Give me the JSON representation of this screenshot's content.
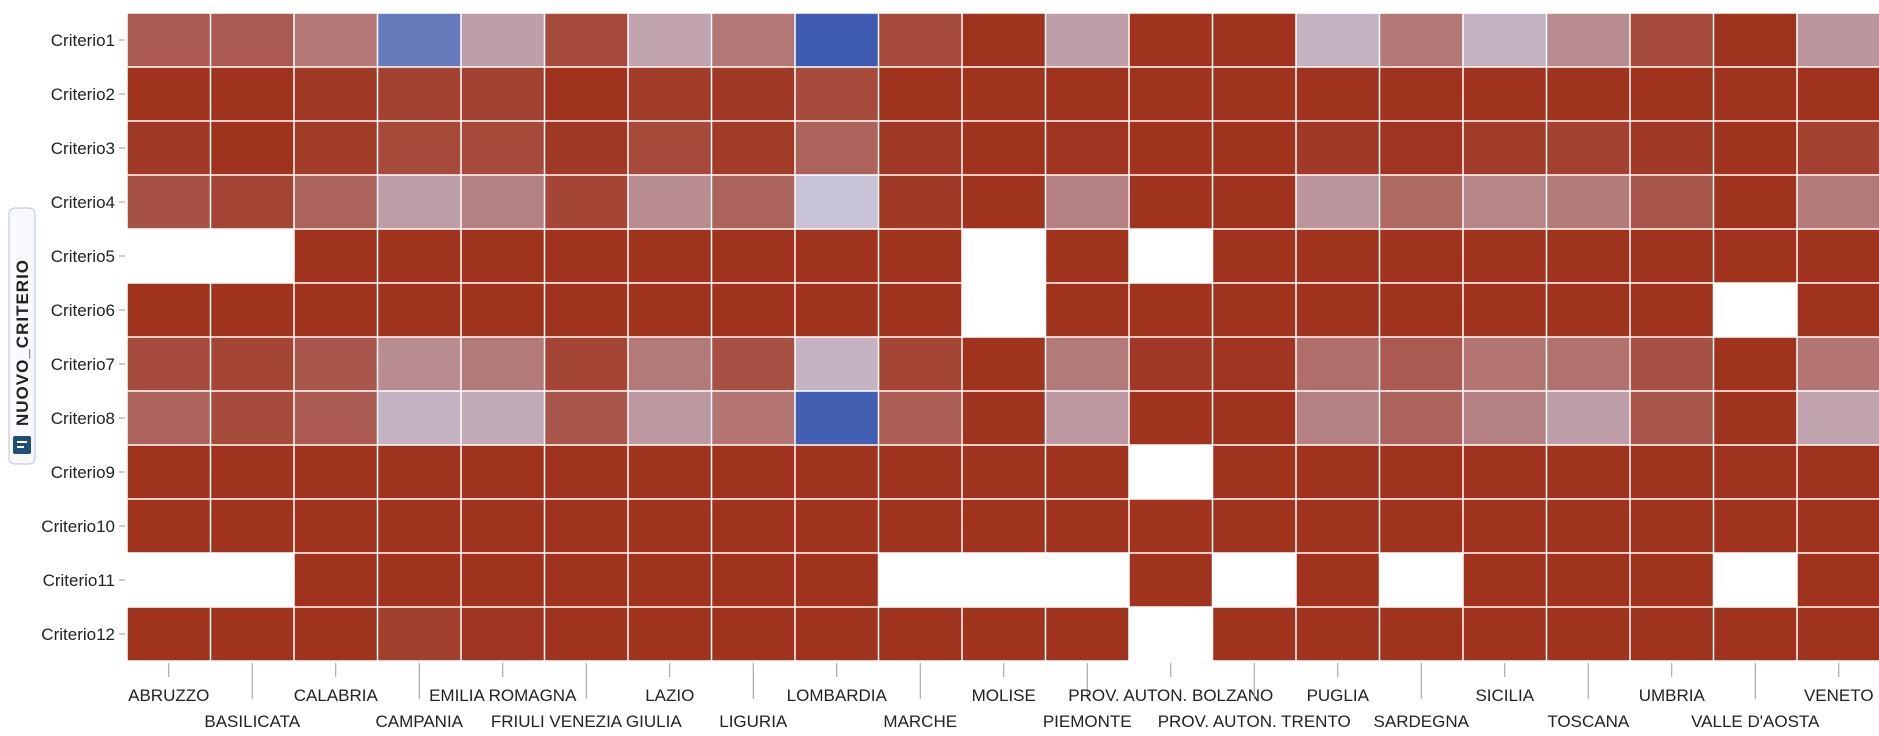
{
  "colors": {
    "high": "#9d2d16",
    "mid": "#c8c2d6",
    "low": "#3d5bb0",
    "empty": "#ffffff",
    "grid": "#e6e6e6",
    "axis_text": "#222222",
    "axis_icon": "#1f4e79"
  },
  "y_axis_title": "NUOVO_CRITERIO",
  "y_axis_icon": "legend-icon",
  "chart_data": {
    "type": "heatmap",
    "x": [
      "ABRUZZO",
      "BASILICATA",
      "CALABRIA",
      "CAMPANIA",
      "EMILIA ROMAGNA",
      "FRIULI VENEZIA GIULIA",
      "LAZIO",
      "LIGURIA",
      "LOMBARDIA",
      "MARCHE",
      "MOLISE",
      "PIEMONTE",
      "PROV. AUTON. BOLZANO",
      "PROV. AUTON. TRENTO",
      "PUGLIA",
      "SARDEGNA",
      "SICILIA",
      "TOSCANA",
      "UMBRIA",
      "VALLE D'AOSTA",
      "VENETO"
    ],
    "y": [
      "Criterio1",
      "Criterio2",
      "Criterio3",
      "Criterio4",
      "Criterio5",
      "Criterio6",
      "Criterio7",
      "Criterio8",
      "Criterio9",
      "Criterio10",
      "Criterio11",
      "Criterio12"
    ],
    "color_scale": [
      "#3d5bb0",
      "#c8c2d6",
      "#9d2d16"
    ],
    "value_range": [
      0,
      1
    ],
    "grid": true,
    "values": [
      [
        0.85,
        0.85,
        0.75,
        0.15,
        0.62,
        0.9,
        0.6,
        0.75,
        0.0,
        0.9,
        0.98,
        0.62,
        0.98,
        0.98,
        0.55,
        0.75,
        0.55,
        0.68,
        0.9,
        0.98,
        0.65
      ],
      [
        0.98,
        0.98,
        0.96,
        0.93,
        0.93,
        0.98,
        0.95,
        0.96,
        0.9,
        0.98,
        0.98,
        0.98,
        0.98,
        0.98,
        0.98,
        0.98,
        0.98,
        0.98,
        0.98,
        0.98,
        0.98
      ],
      [
        0.96,
        0.98,
        0.95,
        0.9,
        0.9,
        0.96,
        0.9,
        0.95,
        0.82,
        0.96,
        0.98,
        0.97,
        0.98,
        0.98,
        0.96,
        0.97,
        0.95,
        0.93,
        0.96,
        0.98,
        0.93
      ],
      [
        0.88,
        0.92,
        0.82,
        0.62,
        0.72,
        0.92,
        0.68,
        0.82,
        0.5,
        0.96,
        0.98,
        0.72,
        0.98,
        0.98,
        0.65,
        0.8,
        0.7,
        0.74,
        0.86,
        0.98,
        0.74
      ],
      [
        null,
        null,
        0.98,
        0.98,
        0.98,
        0.98,
        0.98,
        0.98,
        0.98,
        0.98,
        null,
        0.98,
        null,
        0.98,
        0.98,
        0.98,
        0.98,
        0.98,
        0.98,
        0.98,
        0.98
      ],
      [
        0.98,
        0.98,
        0.98,
        0.98,
        0.98,
        0.98,
        0.98,
        0.98,
        0.98,
        0.98,
        null,
        0.98,
        0.98,
        0.98,
        0.98,
        0.98,
        0.98,
        0.98,
        0.98,
        null,
        0.98
      ],
      [
        0.9,
        0.92,
        0.86,
        0.68,
        0.74,
        0.92,
        0.74,
        0.88,
        0.55,
        0.92,
        0.98,
        0.74,
        0.96,
        0.97,
        0.78,
        0.85,
        0.76,
        0.77,
        0.88,
        0.98,
        0.76
      ],
      [
        0.82,
        0.9,
        0.85,
        0.55,
        0.58,
        0.86,
        0.64,
        0.76,
        0.02,
        0.84,
        0.98,
        0.64,
        0.98,
        0.98,
        0.72,
        0.82,
        0.72,
        0.62,
        0.86,
        0.98,
        0.6
      ],
      [
        0.98,
        0.98,
        0.98,
        0.98,
        0.98,
        0.98,
        0.98,
        0.98,
        0.98,
        0.98,
        0.98,
        0.98,
        null,
        0.98,
        0.98,
        0.98,
        0.98,
        0.98,
        0.98,
        0.98,
        0.98
      ],
      [
        0.98,
        0.98,
        0.98,
        0.98,
        0.98,
        0.98,
        0.98,
        0.98,
        0.98,
        0.98,
        0.98,
        0.98,
        0.98,
        0.98,
        0.98,
        0.98,
        0.98,
        0.98,
        0.98,
        0.98,
        0.98
      ],
      [
        null,
        null,
        0.98,
        0.98,
        0.98,
        0.98,
        0.98,
        0.98,
        0.98,
        null,
        null,
        null,
        0.98,
        null,
        0.98,
        null,
        0.98,
        0.98,
        0.98,
        null,
        0.98
      ],
      [
        0.98,
        0.98,
        0.98,
        0.94,
        0.97,
        0.98,
        0.98,
        0.98,
        0.98,
        0.98,
        0.98,
        0.98,
        null,
        0.98,
        0.98,
        0.98,
        0.98,
        0.98,
        0.98,
        0.98,
        0.98
      ]
    ]
  }
}
